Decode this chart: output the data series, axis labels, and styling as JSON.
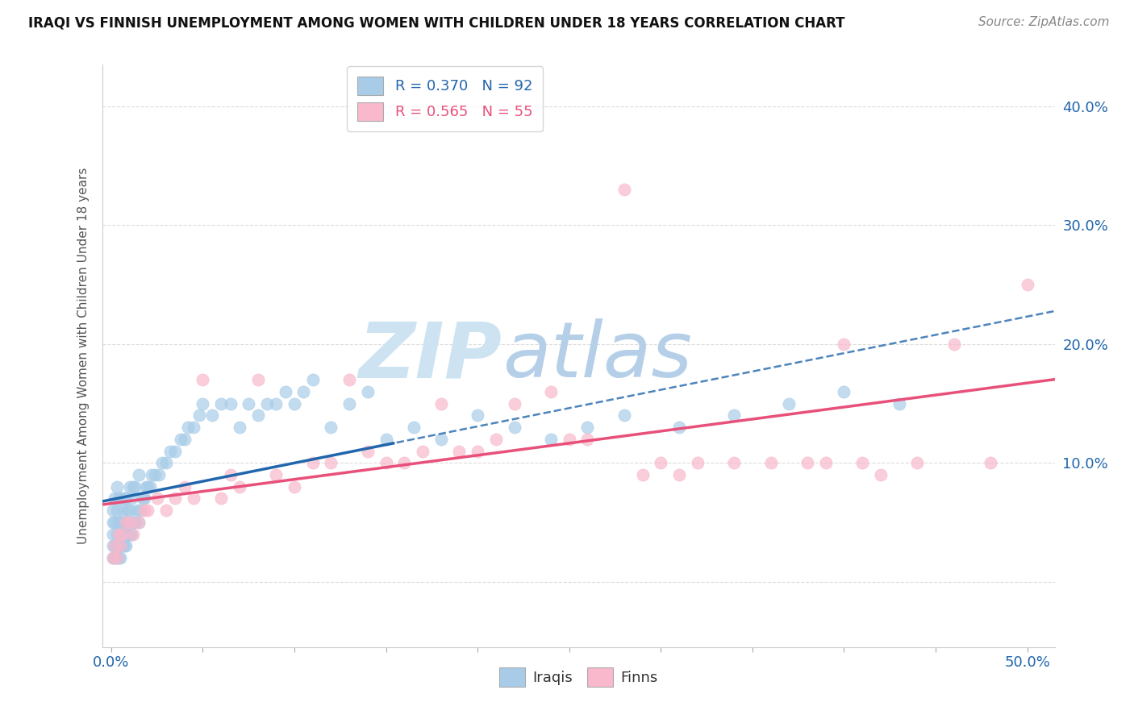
{
  "title": "IRAQI VS FINNISH UNEMPLOYMENT AMONG WOMEN WITH CHILDREN UNDER 18 YEARS CORRELATION CHART",
  "source": "Source: ZipAtlas.com",
  "ylabel": "Unemployment Among Women with Children Under 18 years",
  "legend_iraqis": "R = 0.370   N = 92",
  "legend_finns": "R = 0.565   N = 55",
  "iraqis_color": "#a8cce8",
  "finns_color": "#f9b8cb",
  "iraqis_line_color": "#2166ac",
  "finns_line_color": "#e8507a",
  "xlim": [
    -0.005,
    0.515
  ],
  "ylim": [
    -0.055,
    0.435
  ],
  "x_ticks": [
    0.0,
    0.05,
    0.1,
    0.15,
    0.2,
    0.25,
    0.3,
    0.35,
    0.4,
    0.45,
    0.5
  ],
  "y_ticks": [
    0.0,
    0.1,
    0.2,
    0.3,
    0.4
  ],
  "y_tick_labels": [
    "",
    "10.0%",
    "20.0%",
    "30.0%",
    "40.0%"
  ],
  "background_color": "#ffffff",
  "grid_color": "#cccccc",
  "title_fontsize": 12,
  "source_fontsize": 11,
  "tick_fontsize": 13,
  "legend_fontsize": 13,
  "watermark_zip_color": "#c8dff0",
  "watermark_atlas_color": "#b8d0e8",
  "iraqis_x": [
    0.001,
    0.001,
    0.001,
    0.001,
    0.001,
    0.002,
    0.002,
    0.002,
    0.002,
    0.003,
    0.003,
    0.003,
    0.003,
    0.003,
    0.004,
    0.004,
    0.004,
    0.004,
    0.005,
    0.005,
    0.005,
    0.005,
    0.006,
    0.006,
    0.006,
    0.007,
    0.007,
    0.007,
    0.008,
    0.008,
    0.008,
    0.009,
    0.009,
    0.01,
    0.01,
    0.01,
    0.011,
    0.011,
    0.012,
    0.012,
    0.013,
    0.013,
    0.014,
    0.015,
    0.015,
    0.016,
    0.017,
    0.018,
    0.019,
    0.02,
    0.021,
    0.022,
    0.024,
    0.026,
    0.028,
    0.03,
    0.032,
    0.035,
    0.038,
    0.04,
    0.042,
    0.045,
    0.048,
    0.05,
    0.055,
    0.06,
    0.065,
    0.07,
    0.075,
    0.08,
    0.085,
    0.09,
    0.095,
    0.1,
    0.105,
    0.11,
    0.12,
    0.13,
    0.14,
    0.15,
    0.165,
    0.18,
    0.2,
    0.22,
    0.24,
    0.26,
    0.28,
    0.31,
    0.34,
    0.37,
    0.4,
    0.43
  ],
  "iraqis_y": [
    0.02,
    0.03,
    0.04,
    0.05,
    0.06,
    0.02,
    0.03,
    0.05,
    0.07,
    0.02,
    0.03,
    0.04,
    0.06,
    0.08,
    0.02,
    0.03,
    0.05,
    0.07,
    0.02,
    0.03,
    0.05,
    0.07,
    0.03,
    0.04,
    0.06,
    0.03,
    0.05,
    0.07,
    0.03,
    0.05,
    0.07,
    0.04,
    0.06,
    0.04,
    0.06,
    0.08,
    0.04,
    0.07,
    0.05,
    0.08,
    0.05,
    0.08,
    0.06,
    0.05,
    0.09,
    0.06,
    0.07,
    0.07,
    0.08,
    0.08,
    0.08,
    0.09,
    0.09,
    0.09,
    0.1,
    0.1,
    0.11,
    0.11,
    0.12,
    0.12,
    0.13,
    0.13,
    0.14,
    0.15,
    0.14,
    0.15,
    0.15,
    0.13,
    0.15,
    0.14,
    0.15,
    0.15,
    0.16,
    0.15,
    0.16,
    0.17,
    0.13,
    0.15,
    0.16,
    0.12,
    0.13,
    0.12,
    0.14,
    0.13,
    0.12,
    0.13,
    0.14,
    0.13,
    0.14,
    0.15,
    0.16,
    0.15
  ],
  "finns_x": [
    0.001,
    0.002,
    0.003,
    0.004,
    0.005,
    0.006,
    0.008,
    0.01,
    0.012,
    0.015,
    0.018,
    0.02,
    0.025,
    0.03,
    0.035,
    0.04,
    0.045,
    0.05,
    0.06,
    0.065,
    0.07,
    0.08,
    0.09,
    0.1,
    0.11,
    0.12,
    0.13,
    0.14,
    0.15,
    0.16,
    0.17,
    0.18,
    0.19,
    0.2,
    0.21,
    0.22,
    0.24,
    0.25,
    0.26,
    0.28,
    0.29,
    0.3,
    0.31,
    0.32,
    0.34,
    0.36,
    0.38,
    0.39,
    0.4,
    0.41,
    0.42,
    0.44,
    0.46,
    0.48,
    0.5
  ],
  "finns_y": [
    0.02,
    0.03,
    0.02,
    0.04,
    0.03,
    0.04,
    0.05,
    0.05,
    0.04,
    0.05,
    0.06,
    0.06,
    0.07,
    0.06,
    0.07,
    0.08,
    0.07,
    0.17,
    0.07,
    0.09,
    0.08,
    0.17,
    0.09,
    0.08,
    0.1,
    0.1,
    0.17,
    0.11,
    0.1,
    0.1,
    0.11,
    0.15,
    0.11,
    0.11,
    0.12,
    0.15,
    0.16,
    0.12,
    0.12,
    0.33,
    0.09,
    0.1,
    0.09,
    0.1,
    0.1,
    0.1,
    0.1,
    0.1,
    0.2,
    0.1,
    0.09,
    0.1,
    0.2,
    0.1,
    0.25
  ]
}
